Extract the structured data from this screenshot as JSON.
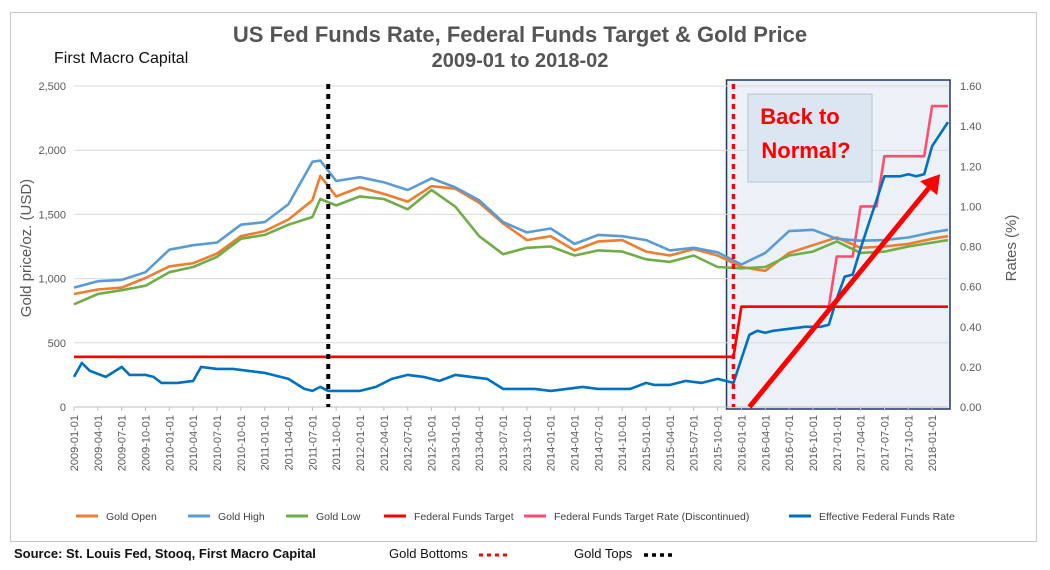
{
  "chart_data": {
    "type": "line",
    "title": "US Fed Funds Rate, Federal Funds Target & Gold Price",
    "subtitle": "2009-01 to 2018-02",
    "brand": "First Macro Capital",
    "ylabel": "Gold price/oz. (USD)",
    "y2label": "Rates (%)",
    "ylim": [
      0,
      2500
    ],
    "y2lim": [
      0,
      1.6
    ],
    "yticks": [
      "0",
      "500",
      "1,000",
      "1,500",
      "2,000",
      "2,500"
    ],
    "y2ticks": [
      "0.00",
      "0.20",
      "0.40",
      "0.60",
      "0.80",
      "1.00",
      "1.20",
      "1.40",
      "1.60"
    ],
    "xticks": [
      "2009-01-01",
      "2009-04-01",
      "2009-07-01",
      "2009-10-01",
      "2010-01-01",
      "2010-04-01",
      "2010-07-01",
      "2010-10-01",
      "2011-01-01",
      "2011-04-01",
      "2011-07-01",
      "2011-10-01",
      "2012-01-01",
      "2012-04-01",
      "2012-07-01",
      "2012-10-01",
      "2013-01-01",
      "2013-04-01",
      "2013-07-01",
      "2013-10-01",
      "2014-01-01",
      "2014-04-01",
      "2014-07-01",
      "2014-10-01",
      "2015-01-01",
      "2015-04-01",
      "2015-07-01",
      "2015-10-01",
      "2016-01-01",
      "2016-04-01",
      "2016-07-01",
      "2016-10-01",
      "2017-01-01",
      "2017-04-01",
      "2017-07-01",
      "2017-10-01",
      "2018-01-01"
    ],
    "months": 110,
    "series": [
      {
        "name": "Gold Open",
        "color": "#ed7d31",
        "axis": "left",
        "x": [
          0,
          3,
          6,
          9,
          12,
          15,
          18,
          21,
          24,
          27,
          30,
          31,
          33,
          36,
          39,
          42,
          45,
          48,
          51,
          54,
          57,
          60,
          63,
          66,
          69,
          72,
          75,
          78,
          81,
          84,
          87,
          90,
          93,
          96,
          99,
          102,
          105,
          108,
          110
        ],
        "values": [
          880,
          915,
          930,
          1005,
          1095,
          1120,
          1195,
          1330,
          1370,
          1460,
          1610,
          1800,
          1640,
          1710,
          1660,
          1600,
          1720,
          1700,
          1590,
          1430,
          1300,
          1330,
          1220,
          1290,
          1300,
          1210,
          1180,
          1230,
          1180,
          1090,
          1060,
          1200,
          1260,
          1320,
          1240,
          1250,
          1270,
          1310,
          1330
        ]
      },
      {
        "name": "Gold High",
        "color": "#5b9bd5",
        "axis": "left",
        "x": [
          0,
          3,
          6,
          9,
          12,
          15,
          18,
          21,
          24,
          27,
          30,
          31,
          33,
          36,
          39,
          42,
          45,
          48,
          51,
          54,
          57,
          60,
          63,
          66,
          69,
          72,
          75,
          78,
          81,
          84,
          87,
          90,
          93,
          96,
          99,
          102,
          105,
          108,
          110
        ],
        "values": [
          930,
          980,
          990,
          1050,
          1225,
          1260,
          1280,
          1420,
          1440,
          1580,
          1910,
          1920,
          1760,
          1790,
          1750,
          1690,
          1780,
          1710,
          1610,
          1440,
          1360,
          1390,
          1270,
          1340,
          1330,
          1300,
          1220,
          1240,
          1205,
          1110,
          1200,
          1370,
          1380,
          1310,
          1295,
          1300,
          1320,
          1360,
          1380
        ]
      },
      {
        "name": "Gold Low",
        "color": "#70ad47",
        "axis": "left",
        "x": [
          0,
          3,
          6,
          9,
          12,
          15,
          18,
          21,
          24,
          27,
          30,
          31,
          33,
          36,
          39,
          42,
          45,
          48,
          51,
          54,
          57,
          60,
          63,
          66,
          69,
          72,
          75,
          78,
          81,
          84,
          87,
          90,
          93,
          96,
          99,
          102,
          105,
          108,
          110
        ],
        "values": [
          800,
          880,
          910,
          945,
          1050,
          1090,
          1170,
          1310,
          1340,
          1420,
          1480,
          1620,
          1570,
          1640,
          1620,
          1540,
          1690,
          1560,
          1330,
          1190,
          1240,
          1250,
          1180,
          1220,
          1210,
          1150,
          1130,
          1180,
          1090,
          1080,
          1090,
          1180,
          1210,
          1290,
          1200,
          1210,
          1250,
          1280,
          1300
        ]
      },
      {
        "name": "Federal Funds Target",
        "color": "#ff0000",
        "axis": "right",
        "x": [
          0,
          83,
          84,
          110
        ],
        "values": [
          0.25,
          0.25,
          0.5,
          0.5
        ]
      },
      {
        "name": "Federal Funds Target Rate (Discontinued)",
        "color": "#ff4d6d",
        "axis": "right",
        "x": [
          0,
          83,
          84,
          95,
          96,
          98,
          99,
          101,
          102,
          104,
          105,
          107,
          108,
          110
        ],
        "values": [
          0.25,
          0.25,
          0.5,
          0.5,
          0.75,
          0.75,
          1.0,
          1.0,
          1.25,
          1.25,
          1.25,
          1.25,
          1.5,
          1.5
        ]
      },
      {
        "name": "Effective Federal Funds Rate",
        "color": "#0070c0",
        "axis": "right",
        "x": [
          0,
          1,
          2,
          4,
          6,
          7,
          9,
          10,
          11,
          13,
          15,
          16,
          18,
          20,
          22,
          24,
          26,
          27,
          29,
          30,
          31,
          32,
          34,
          36,
          38,
          40,
          42,
          44,
          46,
          48,
          50,
          52,
          54,
          56,
          58,
          60,
          62,
          64,
          66,
          68,
          70,
          72,
          73,
          75,
          77,
          79,
          81,
          83,
          84,
          85,
          86,
          87,
          88,
          90,
          92,
          94,
          95,
          96,
          97,
          98,
          99,
          100,
          102,
          104,
          105,
          106,
          107,
          108,
          110
        ],
        "values": [
          0.15,
          0.22,
          0.18,
          0.15,
          0.2,
          0.16,
          0.16,
          0.15,
          0.12,
          0.12,
          0.13,
          0.2,
          0.19,
          0.19,
          0.18,
          0.17,
          0.15,
          0.14,
          0.09,
          0.08,
          0.1,
          0.08,
          0.08,
          0.08,
          0.1,
          0.14,
          0.16,
          0.15,
          0.13,
          0.16,
          0.15,
          0.14,
          0.09,
          0.09,
          0.09,
          0.08,
          0.09,
          0.1,
          0.09,
          0.09,
          0.09,
          0.12,
          0.11,
          0.11,
          0.13,
          0.12,
          0.14,
          0.12,
          0.24,
          0.36,
          0.38,
          0.37,
          0.38,
          0.39,
          0.4,
          0.4,
          0.41,
          0.54,
          0.65,
          0.66,
          0.79,
          0.91,
          1.15,
          1.15,
          1.16,
          1.15,
          1.16,
          1.3,
          1.42
        ]
      }
    ],
    "legend": [
      "Gold Open",
      "Gold High",
      "Gold Low",
      "Federal Funds Target",
      "Federal Funds Target Rate (Discontinued)",
      "Effective Federal Funds Rate"
    ],
    "annotations": {
      "gold_tops_month": 32,
      "gold_bottoms_month": 83,
      "highlight_start_month": 82,
      "callout": [
        "Back to",
        "Normal?"
      ],
      "arrow_from": [
        84,
        0.0
      ],
      "arrow_to": [
        109,
        1.16
      ]
    }
  },
  "footer": {
    "source": "Source: St. Louis Fed, Stooq, First Macro Capital",
    "gold_bottoms": "Gold Bottoms",
    "gold_tops": "Gold Tops"
  },
  "colors": {
    "accent_red": "#ff0000",
    "highlight_fill": "#dce6f2",
    "highlight_border": "#1f3864",
    "title": "#555555"
  }
}
